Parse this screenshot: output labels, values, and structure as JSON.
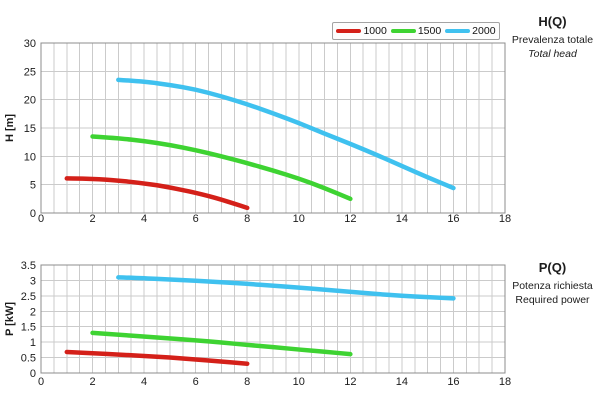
{
  "page": {
    "background": "#ffffff"
  },
  "legend": {
    "items": [
      {
        "label": "1000",
        "color": "#d42019"
      },
      {
        "label": "1500",
        "color": "#3ed332"
      },
      {
        "label": "2000",
        "color": "#3fc1ef"
      }
    ]
  },
  "colors": {
    "grid": "#cbcbcb",
    "border": "#8c8c8c",
    "tick_text": "#1c1c1c"
  },
  "chart_data": [
    {
      "type": "line",
      "title": "H(Q)",
      "subtitle_primary": "Prevalenza totale",
      "subtitle_secondary": "Total head",
      "ylabel": "H [m]",
      "xlabel": "",
      "xlim": [
        0,
        18
      ],
      "ylim": [
        0,
        30
      ],
      "x_tick_step": 2,
      "y_tick_step": 5,
      "x_grid_step": 0.5,
      "y_grid_step": 5,
      "grid": true,
      "legend_position": "top-right-outside",
      "series": [
        {
          "name": "1000",
          "color": "#d42019",
          "points": [
            [
              1,
              6.1
            ],
            [
              1.5,
              6.08
            ],
            [
              2,
              6.0
            ],
            [
              2.5,
              5.9
            ],
            [
              3,
              5.7
            ],
            [
              3.5,
              5.5
            ],
            [
              4,
              5.2
            ],
            [
              4.5,
              4.9
            ],
            [
              5,
              4.5
            ],
            [
              5.5,
              4.05
            ],
            [
              6,
              3.55
            ],
            [
              6.5,
              3.0
            ],
            [
              7,
              2.35
            ],
            [
              7.5,
              1.65
            ],
            [
              8,
              0.9
            ]
          ]
        },
        {
          "name": "1500",
          "color": "#3ed332",
          "points": [
            [
              2,
              13.5
            ],
            [
              3,
              13.2
            ],
            [
              4,
              12.7
            ],
            [
              5,
              12.0
            ],
            [
              6,
              11.1
            ],
            [
              7,
              10.0
            ],
            [
              8,
              8.8
            ],
            [
              9,
              7.5
            ],
            [
              10,
              6.1
            ],
            [
              11,
              4.4
            ],
            [
              12,
              2.5
            ]
          ]
        },
        {
          "name": "2000",
          "color": "#3fc1ef",
          "points": [
            [
              3,
              23.5
            ],
            [
              4,
              23.2
            ],
            [
              5,
              22.6
            ],
            [
              6,
              21.8
            ],
            [
              7,
              20.6
            ],
            [
              8,
              19.2
            ],
            [
              9,
              17.6
            ],
            [
              10,
              15.9
            ],
            [
              11,
              14.0
            ],
            [
              12,
              12.2
            ],
            [
              13,
              10.3
            ],
            [
              14,
              8.3
            ],
            [
              15,
              6.3
            ],
            [
              16,
              4.4
            ]
          ]
        }
      ]
    },
    {
      "type": "line",
      "title": "P(Q)",
      "subtitle_primary": "Potenza richiesta",
      "subtitle_secondary": "Required power",
      "ylabel": "P [kW]",
      "xlabel": "",
      "xlim": [
        0,
        18
      ],
      "ylim": [
        0,
        3.5
      ],
      "x_tick_step": 2,
      "y_tick_step": 0.5,
      "x_grid_step": 0.5,
      "y_grid_step": 0.5,
      "grid": true,
      "legend_position": "none",
      "series": [
        {
          "name": "1000",
          "color": "#d42019",
          "points": [
            [
              1,
              0.68
            ],
            [
              2,
              0.64
            ],
            [
              3,
              0.6
            ],
            [
              4,
              0.55
            ],
            [
              5,
              0.5
            ],
            [
              6,
              0.44
            ],
            [
              7,
              0.37
            ],
            [
              8,
              0.3
            ]
          ]
        },
        {
          "name": "1500",
          "color": "#3ed332",
          "points": [
            [
              2,
              1.3
            ],
            [
              3,
              1.24
            ],
            [
              4,
              1.18
            ],
            [
              5,
              1.12
            ],
            [
              6,
              1.06
            ],
            [
              7,
              0.99
            ],
            [
              8,
              0.91
            ],
            [
              9,
              0.84
            ],
            [
              10,
              0.76
            ],
            [
              11,
              0.69
            ],
            [
              12,
              0.61
            ]
          ]
        },
        {
          "name": "2000",
          "color": "#3fc1ef",
          "points": [
            [
              3,
              3.1
            ],
            [
              4,
              3.07
            ],
            [
              5,
              3.03
            ],
            [
              6,
              2.99
            ],
            [
              7,
              2.94
            ],
            [
              8,
              2.89
            ],
            [
              9,
              2.83
            ],
            [
              10,
              2.77
            ],
            [
              11,
              2.7
            ],
            [
              12,
              2.63
            ],
            [
              13,
              2.56
            ],
            [
              14,
              2.5
            ],
            [
              15,
              2.46
            ],
            [
              16,
              2.42
            ]
          ]
        }
      ]
    }
  ]
}
